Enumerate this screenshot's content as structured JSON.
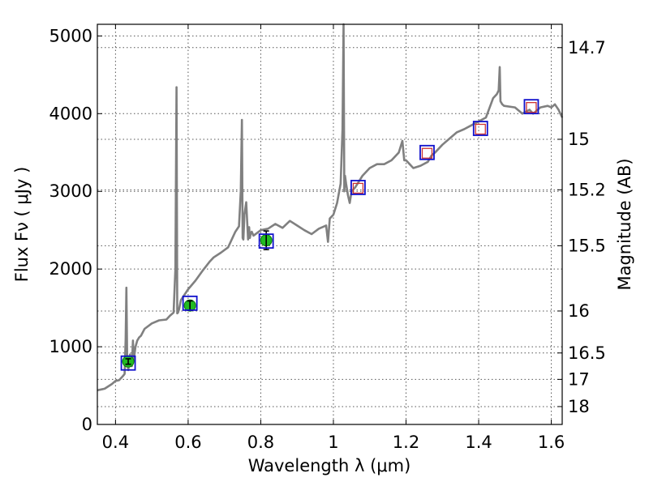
{
  "chart_data": {
    "type": "line",
    "title": "",
    "xlabel": "Wavelength  λ (μm)",
    "ylabel": "Flux  Fν  ( μJy )",
    "y2label": "Magnitude (AB)",
    "xlim": [
      0.35,
      1.63
    ],
    "ylim": [
      0,
      5150
    ],
    "grid": true,
    "x_ticks": [
      {
        "value": 0.4,
        "label": "0.4"
      },
      {
        "value": 0.6,
        "label": "0.6"
      },
      {
        "value": 0.8,
        "label": "0.8"
      },
      {
        "value": 1.0,
        "label": "1"
      },
      {
        "value": 1.2,
        "label": "1.2"
      },
      {
        "value": 1.4,
        "label": "1.4"
      },
      {
        "value": 1.6,
        "label": "1.6"
      }
    ],
    "y_ticks": [
      {
        "value": 0,
        "label": "0"
      },
      {
        "value": 1000,
        "label": "1000"
      },
      {
        "value": 2000,
        "label": "2000"
      },
      {
        "value": 3000,
        "label": "3000"
      },
      {
        "value": 4000,
        "label": "4000"
      },
      {
        "value": 5000,
        "label": "5000"
      }
    ],
    "y2_ticks": [
      {
        "flux": 4850,
        "label": "14.7"
      },
      {
        "flux": 3670,
        "label": "15"
      },
      {
        "flux": 3020,
        "label": "15.2"
      },
      {
        "flux": 2300,
        "label": "15.5"
      },
      {
        "flux": 1460,
        "label": "16"
      },
      {
        "flux": 920,
        "label": "16.5"
      },
      {
        "flux": 580,
        "label": "17"
      },
      {
        "flux": 230,
        "label": "18"
      }
    ],
    "series": [
      {
        "style": "line",
        "color": "#808080",
        "x": [
          0.35,
          0.37,
          0.39,
          0.4,
          0.41,
          0.42,
          0.425,
          0.428,
          0.43,
          0.432,
          0.435,
          0.44,
          0.445,
          0.448,
          0.45,
          0.455,
          0.46,
          0.465,
          0.47,
          0.48,
          0.5,
          0.52,
          0.54,
          0.55,
          0.56,
          0.565,
          0.568,
          0.57,
          0.572,
          0.575,
          0.58,
          0.6,
          0.62,
          0.64,
          0.66,
          0.67,
          0.69,
          0.71,
          0.73,
          0.74,
          0.745,
          0.748,
          0.75,
          0.752,
          0.755,
          0.76,
          0.765,
          0.768,
          0.77,
          0.772,
          0.775,
          0.78,
          0.8,
          0.82,
          0.84,
          0.86,
          0.88,
          0.9,
          0.92,
          0.94,
          0.96,
          0.98,
          0.985,
          0.99,
          1.0,
          1.01,
          1.02,
          1.025,
          1.028,
          1.03,
          1.032,
          1.035,
          1.04,
          1.045,
          1.05,
          1.06,
          1.08,
          1.1,
          1.12,
          1.14,
          1.16,
          1.18,
          1.19,
          1.195,
          1.2,
          1.21,
          1.22,
          1.24,
          1.26,
          1.27,
          1.28,
          1.3,
          1.32,
          1.34,
          1.36,
          1.38,
          1.4,
          1.42,
          1.44,
          1.45,
          1.455,
          1.458,
          1.46,
          1.465,
          1.47,
          1.5,
          1.52,
          1.54,
          1.55,
          1.57,
          1.59,
          1.6,
          1.61,
          1.62,
          1.63
        ],
        "values": [
          440,
          460,
          520,
          560,
          570,
          620,
          650,
          1100,
          1760,
          900,
          700,
          900,
          750,
          1080,
          820,
          1000,
          1080,
          1120,
          1140,
          1230,
          1300,
          1340,
          1350,
          1400,
          1440,
          2000,
          4340,
          1430,
          1440,
          1480,
          1600,
          1740,
          1850,
          1980,
          2100,
          2150,
          2210,
          2280,
          2480,
          2550,
          3000,
          3920,
          2400,
          2380,
          2700,
          2860,
          2380,
          2540,
          2400,
          2450,
          2480,
          2430,
          2500,
          2520,
          2580,
          2530,
          2620,
          2560,
          2500,
          2450,
          2520,
          2560,
          2350,
          2650,
          2700,
          2850,
          3100,
          3800,
          5150,
          3000,
          3200,
          3100,
          2950,
          2850,
          3000,
          3050,
          3200,
          3300,
          3350,
          3350,
          3400,
          3500,
          3650,
          3400,
          3400,
          3350,
          3300,
          3330,
          3380,
          3460,
          3500,
          3600,
          3680,
          3760,
          3800,
          3850,
          3900,
          3950,
          4200,
          4250,
          4300,
          4600,
          4160,
          4120,
          4100,
          4080,
          4000,
          4050,
          4000,
          4080,
          4100,
          4080,
          4120,
          4050,
          3950
        ]
      },
      {
        "style": "filled-circle-errorbar",
        "color": "#22bb22",
        "x": [
          0.435,
          0.605,
          0.815
        ],
        "values": [
          810,
          1530,
          2370
        ],
        "errors": [
          35,
          60,
          120
        ]
      },
      {
        "style": "open-square",
        "color": "#cc3333",
        "x": [
          1.068,
          1.258,
          1.405,
          1.545
        ],
        "values": [
          3040,
          3490,
          3800,
          4080
        ]
      },
      {
        "style": "large-open-square",
        "color": "#1111cc",
        "x": [
          0.435,
          0.605,
          0.815,
          1.068,
          1.258,
          1.405,
          1.545
        ],
        "values": [
          790,
          1560,
          2360,
          3050,
          3500,
          3810,
          4090
        ]
      }
    ]
  }
}
